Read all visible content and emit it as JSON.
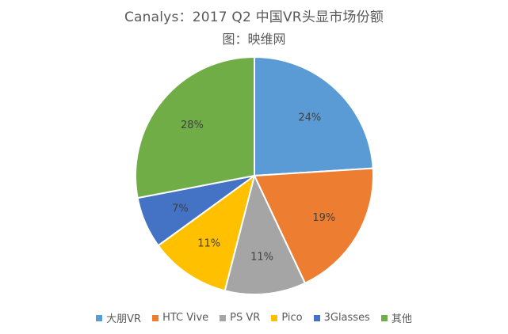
{
  "chart_data": {
    "type": "pie",
    "title": "Canalys：2017 Q2 中国VR头显市场份额",
    "subtitle": "图：映维网",
    "slices": [
      {
        "name": "大朋VR",
        "value": 24,
        "label": "24%",
        "color": "#5B9BD5"
      },
      {
        "name": "HTC Vive",
        "value": 19,
        "label": "19%",
        "color": "#ED7D31"
      },
      {
        "name": "PS VR",
        "value": 11,
        "label": "11%",
        "color": "#A5A5A5"
      },
      {
        "name": "Pico",
        "value": 11,
        "label": "11%",
        "color": "#FFC000"
      },
      {
        "name": "3Glasses",
        "value": 7,
        "label": "7%",
        "color": "#4472C4"
      },
      {
        "name": "其他",
        "value": 28,
        "label": "28%",
        "color": "#70AD47"
      }
    ],
    "legend_position": "bottom"
  }
}
